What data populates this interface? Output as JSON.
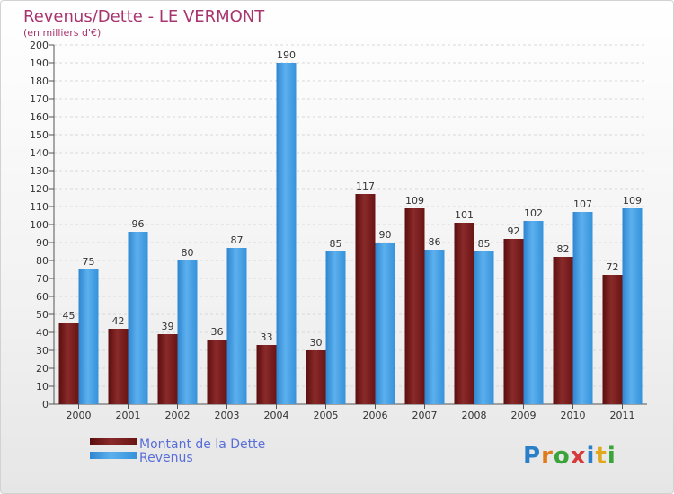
{
  "chart_data": {
    "type": "bar",
    "title": "Revenus/Dette - LE VERMONT",
    "subtitle": "(en milliers d'€)",
    "categories": [
      "2000",
      "2001",
      "2002",
      "2003",
      "2004",
      "2005",
      "2006",
      "2007",
      "2008",
      "2009",
      "2010",
      "2011"
    ],
    "series": [
      {
        "name": "Montant de la Dette",
        "color": "#7a1b1b",
        "values": [
          45,
          42,
          39,
          36,
          33,
          30,
          117,
          109,
          101,
          92,
          82,
          72
        ]
      },
      {
        "name": "Revenus",
        "color": "#4a9fe0",
        "values": [
          75,
          96,
          80,
          87,
          190,
          85,
          90,
          86,
          85,
          102,
          107,
          109
        ]
      }
    ],
    "ylim": [
      0,
      200
    ],
    "ytick_step": 10,
    "grid": true,
    "legend": "bottom-left",
    "xlabel": "",
    "ylabel": ""
  },
  "logo": {
    "text": "Proxiti",
    "letter_colors": [
      "#2a7fc9",
      "#e07b1a",
      "#3aa33a",
      "#d63a3a",
      "#2a7fc9",
      "#e0a81a",
      "#3aa33a"
    ]
  }
}
